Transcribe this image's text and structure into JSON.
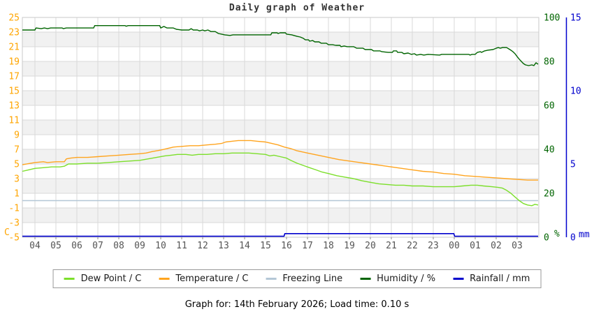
{
  "title": "Daily graph of Weather",
  "footer": {
    "text": "Graph for: 14th February 2026; Load time: 0.10 s"
  },
  "legend": {
    "items": [
      {
        "label": "Dew Point / C",
        "slug": "dew-point",
        "color": "#7cdf2b"
      },
      {
        "label": "Temperature / C",
        "slug": "temperature",
        "color": "#ffa41e"
      },
      {
        "label": "Freezing Line",
        "slug": "freezing-line",
        "color": "#b4c7d6"
      },
      {
        "label": "Humidity / %",
        "slug": "humidity",
        "color": "#006400"
      },
      {
        "label": "Rainfall / mm",
        "slug": "rainfall",
        "color": "#0000cd"
      }
    ]
  },
  "chart_data": {
    "type": "line",
    "title": "Daily graph of Weather",
    "x_axis": {
      "tick_labels": [
        "04",
        "05",
        "06",
        "07",
        "08",
        "09",
        "10",
        "11",
        "12",
        "13",
        "14",
        "15",
        "16",
        "17",
        "18",
        "19",
        "20",
        "21",
        "22",
        "23",
        "00",
        "01",
        "02",
        "03"
      ],
      "label_color": "#555555",
      "grid": true,
      "data_start_hour": 3.4,
      "data_end_hour": 28.0
    },
    "y_axes": {
      "left": {
        "unit": "C",
        "min": -5,
        "max": 25,
        "tick_step": 2,
        "ticks": [
          25,
          23,
          21,
          19,
          17,
          15,
          13,
          11,
          9,
          7,
          5,
          3,
          1,
          -1,
          -3,
          -5
        ],
        "label_color": "#ffa500"
      },
      "percent": {
        "unit": "%",
        "min": 0,
        "max": 100,
        "tick_step": 20,
        "ticks": [
          100,
          80,
          60,
          40,
          20,
          0
        ],
        "label_color": "#006400"
      },
      "mm": {
        "unit": "mm",
        "min": 0,
        "max": 15,
        "tick_step": 5,
        "ticks": [
          15,
          10,
          5,
          0
        ],
        "label_color": "#0000cd",
        "axis_line_color": "#0000cd"
      }
    },
    "grid_color": "#d9d9d9",
    "band_color": "#f1f1f1",
    "series": [
      {
        "name": "Freezing Line",
        "slug": "freezing-line",
        "axis": "left",
        "color": "#b4c7d6",
        "width": 1.6,
        "points": [
          [
            3.4,
            0
          ],
          [
            28.0,
            0
          ]
        ]
      },
      {
        "name": "Dew Point / C",
        "slug": "dew-point",
        "axis": "left",
        "color": "#7cdf2b",
        "width": 1.4,
        "points": [
          [
            3.4,
            4.0
          ],
          [
            3.7,
            4.2
          ],
          [
            4.0,
            4.4
          ],
          [
            4.4,
            4.5
          ],
          [
            4.8,
            4.6
          ],
          [
            5.2,
            4.6
          ],
          [
            5.4,
            4.7
          ],
          [
            5.6,
            5.0
          ],
          [
            6.0,
            5.0
          ],
          [
            6.5,
            5.1
          ],
          [
            7.0,
            5.1
          ],
          [
            7.5,
            5.2
          ],
          [
            8.0,
            5.3
          ],
          [
            8.5,
            5.4
          ],
          [
            9.0,
            5.5
          ],
          [
            9.4,
            5.7
          ],
          [
            9.8,
            5.9
          ],
          [
            10.2,
            6.1
          ],
          [
            10.5,
            6.2
          ],
          [
            10.8,
            6.3
          ],
          [
            11.2,
            6.3
          ],
          [
            11.5,
            6.2
          ],
          [
            11.8,
            6.3
          ],
          [
            12.2,
            6.3
          ],
          [
            12.6,
            6.4
          ],
          [
            13.0,
            6.4
          ],
          [
            13.4,
            6.5
          ],
          [
            13.8,
            6.5
          ],
          [
            14.2,
            6.5
          ],
          [
            14.6,
            6.4
          ],
          [
            15.0,
            6.3
          ],
          [
            15.2,
            6.1
          ],
          [
            15.4,
            6.2
          ],
          [
            15.7,
            6.0
          ],
          [
            16.0,
            5.8
          ],
          [
            16.2,
            5.5
          ],
          [
            16.5,
            5.1
          ],
          [
            16.8,
            4.8
          ],
          [
            17.1,
            4.5
          ],
          [
            17.4,
            4.2
          ],
          [
            17.7,
            3.9
          ],
          [
            18.0,
            3.7
          ],
          [
            18.4,
            3.4
          ],
          [
            18.8,
            3.2
          ],
          [
            19.2,
            3.0
          ],
          [
            19.6,
            2.7
          ],
          [
            20.0,
            2.5
          ],
          [
            20.4,
            2.3
          ],
          [
            20.8,
            2.2
          ],
          [
            21.2,
            2.1
          ],
          [
            21.6,
            2.1
          ],
          [
            22.0,
            2.0
          ],
          [
            22.5,
            2.0
          ],
          [
            23.0,
            1.9
          ],
          [
            23.5,
            1.9
          ],
          [
            24.0,
            1.9
          ],
          [
            24.4,
            2.0
          ],
          [
            24.8,
            2.1
          ],
          [
            25.1,
            2.1
          ],
          [
            25.4,
            2.0
          ],
          [
            25.8,
            1.9
          ],
          [
            26.1,
            1.8
          ],
          [
            26.3,
            1.7
          ],
          [
            26.5,
            1.4
          ],
          [
            26.7,
            1.0
          ],
          [
            26.9,
            0.5
          ],
          [
            27.1,
            0.0
          ],
          [
            27.3,
            -0.4
          ],
          [
            27.5,
            -0.6
          ],
          [
            27.7,
            -0.7
          ],
          [
            27.85,
            -0.5
          ],
          [
            28.0,
            -0.6
          ]
        ]
      },
      {
        "name": "Temperature / C",
        "slug": "temperature",
        "axis": "left",
        "color": "#ffa41e",
        "width": 1.4,
        "points": [
          [
            3.4,
            4.9
          ],
          [
            4.0,
            5.2
          ],
          [
            4.4,
            5.3
          ],
          [
            4.6,
            5.2
          ],
          [
            5.0,
            5.3
          ],
          [
            5.4,
            5.3
          ],
          [
            5.5,
            5.7
          ],
          [
            5.7,
            5.8
          ],
          [
            6.0,
            5.9
          ],
          [
            6.5,
            5.9
          ],
          [
            7.0,
            6.0
          ],
          [
            7.5,
            6.1
          ],
          [
            8.0,
            6.2
          ],
          [
            8.5,
            6.3
          ],
          [
            9.0,
            6.4
          ],
          [
            9.3,
            6.5
          ],
          [
            9.6,
            6.7
          ],
          [
            10.0,
            6.9
          ],
          [
            10.3,
            7.1
          ],
          [
            10.6,
            7.3
          ],
          [
            11.0,
            7.4
          ],
          [
            11.4,
            7.5
          ],
          [
            11.8,
            7.5
          ],
          [
            12.2,
            7.6
          ],
          [
            12.6,
            7.7
          ],
          [
            12.9,
            7.8
          ],
          [
            13.1,
            8.0
          ],
          [
            13.4,
            8.1
          ],
          [
            13.7,
            8.2
          ],
          [
            14.0,
            8.2
          ],
          [
            14.3,
            8.2
          ],
          [
            14.6,
            8.1
          ],
          [
            15.0,
            8.0
          ],
          [
            15.3,
            7.8
          ],
          [
            15.6,
            7.6
          ],
          [
            15.9,
            7.3
          ],
          [
            16.2,
            7.1
          ],
          [
            16.5,
            6.8
          ],
          [
            17.0,
            6.5
          ],
          [
            17.5,
            6.2
          ],
          [
            18.0,
            5.9
          ],
          [
            18.5,
            5.6
          ],
          [
            19.0,
            5.4
          ],
          [
            19.5,
            5.2
          ],
          [
            20.0,
            5.0
          ],
          [
            20.5,
            4.8
          ],
          [
            21.0,
            4.6
          ],
          [
            21.5,
            4.4
          ],
          [
            22.0,
            4.2
          ],
          [
            22.5,
            4.0
          ],
          [
            23.0,
            3.9
          ],
          [
            23.5,
            3.7
          ],
          [
            24.0,
            3.6
          ],
          [
            24.5,
            3.4
          ],
          [
            25.0,
            3.3
          ],
          [
            25.5,
            3.2
          ],
          [
            26.0,
            3.1
          ],
          [
            26.5,
            3.0
          ],
          [
            27.0,
            2.9
          ],
          [
            27.5,
            2.8
          ],
          [
            28.0,
            2.8
          ]
        ]
      },
      {
        "name": "Humidity / %",
        "slug": "humidity",
        "axis": "percent",
        "color": "#006400",
        "width": 1.4,
        "points": [
          [
            3.4,
            94.3
          ],
          [
            4.0,
            94.3
          ],
          [
            4.05,
            95.2
          ],
          [
            4.3,
            94.9
          ],
          [
            4.45,
            95.2
          ],
          [
            4.6,
            94.9
          ],
          [
            4.75,
            95.2
          ],
          [
            5.3,
            95.2
          ],
          [
            5.35,
            94.9
          ],
          [
            5.5,
            95.2
          ],
          [
            6.8,
            95.2
          ],
          [
            6.85,
            96.3
          ],
          [
            8.3,
            96.3
          ],
          [
            8.35,
            96.0
          ],
          [
            8.45,
            96.3
          ],
          [
            9.95,
            96.3
          ],
          [
            10.0,
            95.2
          ],
          [
            10.15,
            95.9
          ],
          [
            10.3,
            95.2
          ],
          [
            10.6,
            95.2
          ],
          [
            10.75,
            94.6
          ],
          [
            11.0,
            94.3
          ],
          [
            11.35,
            94.3
          ],
          [
            11.45,
            94.9
          ],
          [
            11.55,
            94.3
          ],
          [
            11.75,
            94.3
          ],
          [
            11.85,
            93.9
          ],
          [
            12.0,
            94.3
          ],
          [
            12.1,
            93.9
          ],
          [
            12.25,
            94.3
          ],
          [
            12.4,
            93.6
          ],
          [
            12.6,
            93.6
          ],
          [
            12.75,
            92.7
          ],
          [
            12.9,
            92.4
          ],
          [
            13.05,
            92.1
          ],
          [
            13.3,
            91.8
          ],
          [
            13.45,
            92.1
          ],
          [
            15.25,
            92.1
          ],
          [
            15.3,
            93.0
          ],
          [
            15.55,
            93.0
          ],
          [
            15.6,
            92.7
          ],
          [
            15.7,
            93.0
          ],
          [
            15.95,
            93.0
          ],
          [
            16.0,
            92.4
          ],
          [
            16.25,
            92.1
          ],
          [
            16.35,
            91.8
          ],
          [
            16.5,
            91.4
          ],
          [
            16.65,
            91.1
          ],
          [
            16.8,
            90.5
          ],
          [
            16.9,
            89.8
          ],
          [
            17.05,
            89.8
          ],
          [
            17.1,
            89.2
          ],
          [
            17.25,
            89.5
          ],
          [
            17.35,
            88.9
          ],
          [
            17.55,
            88.9
          ],
          [
            17.65,
            88.3
          ],
          [
            17.9,
            88.3
          ],
          [
            18.0,
            87.6
          ],
          [
            18.2,
            87.6
          ],
          [
            18.35,
            87.3
          ],
          [
            18.55,
            87.3
          ],
          [
            18.6,
            86.7
          ],
          [
            18.75,
            87.0
          ],
          [
            18.9,
            86.7
          ],
          [
            19.2,
            86.7
          ],
          [
            19.35,
            86.0
          ],
          [
            19.65,
            86.0
          ],
          [
            19.75,
            85.4
          ],
          [
            20.05,
            85.4
          ],
          [
            20.15,
            84.8
          ],
          [
            20.45,
            84.8
          ],
          [
            20.55,
            84.4
          ],
          [
            20.85,
            84.1
          ],
          [
            21.05,
            84.1
          ],
          [
            21.1,
            84.8
          ],
          [
            21.25,
            84.8
          ],
          [
            21.3,
            84.1
          ],
          [
            21.5,
            84.1
          ],
          [
            21.6,
            83.5
          ],
          [
            21.8,
            83.8
          ],
          [
            21.95,
            83.2
          ],
          [
            22.1,
            83.5
          ],
          [
            22.2,
            82.9
          ],
          [
            22.4,
            83.2
          ],
          [
            22.55,
            82.9
          ],
          [
            22.75,
            83.2
          ],
          [
            23.3,
            82.9
          ],
          [
            23.4,
            83.2
          ],
          [
            24.7,
            83.2
          ],
          [
            24.75,
            82.9
          ],
          [
            24.85,
            83.2
          ],
          [
            25.0,
            83.2
          ],
          [
            25.1,
            84.1
          ],
          [
            25.25,
            84.4
          ],
          [
            25.3,
            84.1
          ],
          [
            25.45,
            84.8
          ],
          [
            25.6,
            85.1
          ],
          [
            25.85,
            85.4
          ],
          [
            26.0,
            86.0
          ],
          [
            26.1,
            86.3
          ],
          [
            26.2,
            86.0
          ],
          [
            26.3,
            86.3
          ],
          [
            26.5,
            86.3
          ],
          [
            26.6,
            85.7
          ],
          [
            26.7,
            85.1
          ],
          [
            26.8,
            84.4
          ],
          [
            26.9,
            83.5
          ],
          [
            27.0,
            82.2
          ],
          [
            27.1,
            81.0
          ],
          [
            27.2,
            80.0
          ],
          [
            27.3,
            79.0
          ],
          [
            27.4,
            78.4
          ],
          [
            27.55,
            78.1
          ],
          [
            27.7,
            78.4
          ],
          [
            27.8,
            78.1
          ],
          [
            27.9,
            79.4
          ],
          [
            28.0,
            78.7
          ]
        ]
      },
      {
        "name": "Rainfall / mm",
        "slug": "rainfall",
        "axis": "mm",
        "color": "#0000cd",
        "width": 1.6,
        "points": [
          [
            3.4,
            0
          ],
          [
            15.88,
            0
          ],
          [
            15.92,
            0.25
          ],
          [
            23.98,
            0.25
          ],
          [
            24.02,
            0
          ],
          [
            28.0,
            0
          ]
        ]
      }
    ]
  }
}
